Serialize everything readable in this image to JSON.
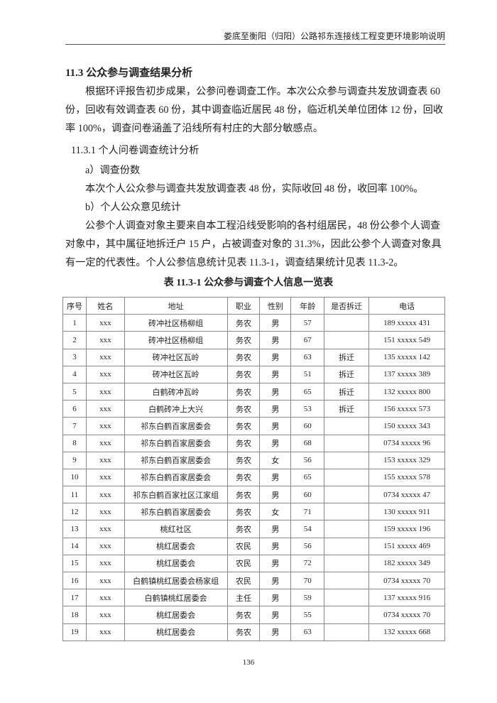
{
  "header": "娄底至衡阳（归阳）公路祁东连接线工程变更环境影响说明",
  "section_title": "11.3  公众参与调查结果分析",
  "paragraph1": "根据环评报告初步成果，公参问卷调查工作。本次公众参与调查共发放调查表 60 份，回收有效调查表 60 份，其中调查临近居民 48 份，临近机关单位团体 12 份，回收率 100%，调查问卷涵盖了沿线所有村庄的大部分敏感点。",
  "subsection_title": "11.3.1 个人问卷调查统计分析",
  "item_a": "a）调查份数",
  "paragraph2": "本次个人公众参与调查共发放调查表 48 份，实际收回 48 份，收回率 100%。",
  "item_b": "b）个人公众意见统计",
  "paragraph3": "公参个人调查对象主要来自本工程沿线受影响的各村组居民，48 份公参个人调查对象中，其中属征地拆迁户 15 户，占被调查对象的 31.3%，因此公参个人调查对象具有一定的代表性。个人公参信息统计见表 11.3-1，调查结果统计见表 11.3-2。",
  "table_caption": "表  11.3-1      公众参与调查个人信息一览表",
  "table": {
    "headers": [
      "序号",
      "姓名",
      "地址",
      "职业",
      "性别",
      "年龄",
      "是否拆迁",
      "电话"
    ],
    "rows": [
      [
        "1",
        "xxx",
        "砖冲社区杨柳组",
        "务农",
        "男",
        "57",
        "",
        "189 xxxxx 431"
      ],
      [
        "2",
        "xxx",
        "砖冲社区杨柳组",
        "务农",
        "男",
        "67",
        "",
        "151 xxxxx 549"
      ],
      [
        "3",
        "xxx",
        "砖冲社区瓦岭",
        "务农",
        "男",
        "63",
        "拆迁",
        "135 xxxxx 142"
      ],
      [
        "4",
        "xxx",
        "砖冲社区瓦岭",
        "务农",
        "男",
        "51",
        "拆迁",
        "137 xxxxx 389"
      ],
      [
        "5",
        "xxx",
        "白鹤砖冲瓦岭",
        "务农",
        "男",
        "65",
        "拆迁",
        "132 xxxxx 800"
      ],
      [
        "6",
        "xxx",
        "白鹤砖冲上大兴",
        "务农",
        "男",
        "53",
        "拆迁",
        "156 xxxxx 573"
      ],
      [
        "7",
        "xxx",
        "祁东白鹤百家居委会",
        "务农",
        "男",
        "60",
        "",
        "150 xxxxx 343"
      ],
      [
        "8",
        "xxx",
        "祁东白鹤百家居委会",
        "务农",
        "男",
        "68",
        "",
        "0734 xxxxx 96"
      ],
      [
        "9",
        "xxx",
        "祁东白鹤百家居委会",
        "务农",
        "女",
        "56",
        "",
        "153 xxxxx 329"
      ],
      [
        "10",
        "xxx",
        "祁东白鹤百家居委会",
        "务农",
        "男",
        "65",
        "",
        "155 xxxxx 578"
      ],
      [
        "11",
        "xxx",
        "祁东白鹤百家社区江家组",
        "务农",
        "男",
        "60",
        "",
        "0734 xxxxx 47"
      ],
      [
        "12",
        "xxx",
        "祁东白鹤百家居委会",
        "务农",
        "女",
        "71",
        "",
        "130 xxxxx 911"
      ],
      [
        "13",
        "xxx",
        "桃红社区",
        "务农",
        "男",
        "54",
        "",
        "159 xxxxx 196"
      ],
      [
        "14",
        "xxx",
        "桃红居委会",
        "农民",
        "男",
        "56",
        "",
        "151 xxxxx 469"
      ],
      [
        "15",
        "xxx",
        "桃红居委会",
        "农民",
        "男",
        "72",
        "",
        "182 xxxxx 349"
      ],
      [
        "16",
        "xxx",
        "白鹤镇桃红居委会杨家组",
        "农民",
        "男",
        "70",
        "",
        "0734 xxxxx 70"
      ],
      [
        "17",
        "xxx",
        "白鹤镇桃红居委会",
        "主任",
        "男",
        "59",
        "",
        "137 xxxxx 916"
      ],
      [
        "18",
        "xxx",
        "桃红居委会",
        "务农",
        "男",
        "55",
        "",
        "0734 xxxxx 70"
      ],
      [
        "19",
        "xxx",
        "桃红居委会",
        "务农",
        "男",
        "63",
        "",
        "132 xxxxx 668"
      ]
    ]
  },
  "page_number": "136"
}
